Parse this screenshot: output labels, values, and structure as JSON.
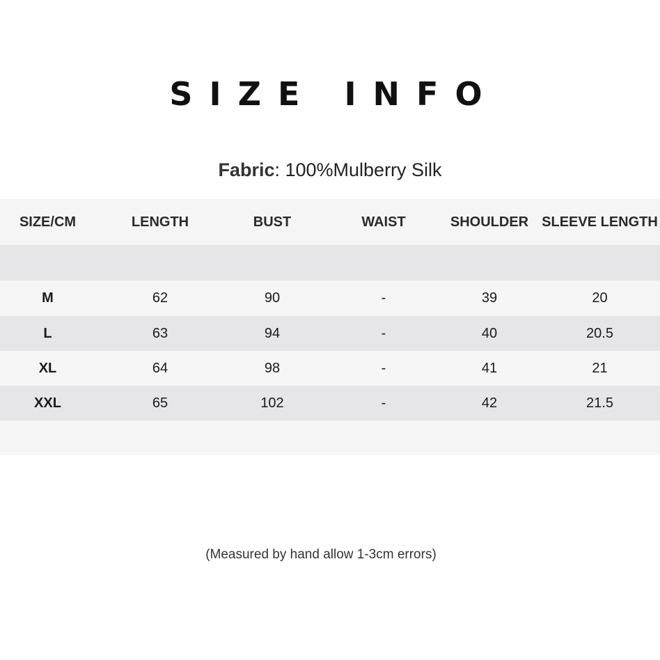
{
  "title": "SIZE INFO",
  "fabric": {
    "label": "Fabric",
    "value": ": 100%Mulberry Silk"
  },
  "table": {
    "headers": [
      "SIZE/CM",
      "LENGTH",
      "BUST",
      "WAIST",
      "SHOULDER",
      "SLEEVE LENGTH"
    ],
    "rows": [
      [
        "M",
        "62",
        "90",
        "-",
        "39",
        "20"
      ],
      [
        "L",
        "63",
        "94",
        "-",
        "40",
        "20.5"
      ],
      [
        "XL",
        "64",
        "98",
        "-",
        "41",
        "21"
      ],
      [
        "XXL",
        "65",
        "102",
        "-",
        "42",
        "21.5"
      ]
    ]
  },
  "note": "(Measured by hand allow 1-3cm errors)"
}
